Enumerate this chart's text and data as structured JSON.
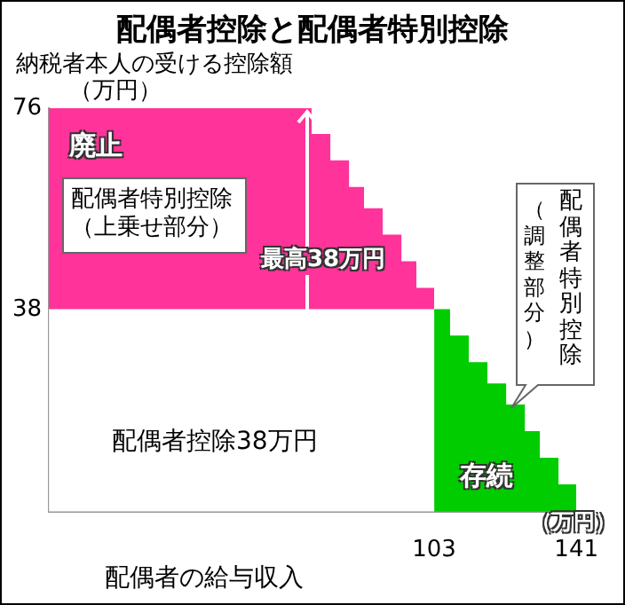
{
  "chart_data": {
    "type": "area",
    "title": "配偶者控除と配偶者特別控除",
    "ylabel": "納税者本人の受ける控除額",
    "xlabel": "配偶者の給与収入",
    "annotations": [
      "（万円）",
      "廃止",
      "配偶者特別控除（上乗せ部分）",
      "最高38万円",
      "配偶者控除38万円",
      "存続",
      "配偶者特別控除",
      "（調整部分）",
      "（万円）"
    ],
    "series": [
      {
        "color": "#ff3399",
        "x": [
          0,
          70,
          70,
          75,
          75,
          80,
          80,
          84,
          84,
          89,
          89,
          94,
          94,
          98,
          98,
          103
        ],
        "values": [
          76,
          76,
          71,
          71,
          66,
          66,
          61,
          61,
          57,
          57,
          52,
          52,
          47,
          47,
          42,
          42
        ]
      },
      {
        "color": "#ffffff",
        "x": [
          0,
          103
        ],
        "values": [
          38,
          38
        ]
      },
      {
        "color": "#00cc00",
        "x": [
          103,
          107,
          107,
          112,
          112,
          117,
          117,
          122,
          122,
          127,
          127,
          131,
          131,
          136,
          136,
          141
        ],
        "values": [
          38,
          38,
          33,
          33,
          28,
          28,
          24,
          24,
          20,
          20,
          15,
          15,
          10,
          10,
          5,
          5
        ]
      }
    ],
    "xlim": [
      0,
      141
    ],
    "xticks": [
      103,
      141
    ],
    "ylim": [
      0,
      76
    ],
    "yticks": [
      38,
      76
    ]
  }
}
